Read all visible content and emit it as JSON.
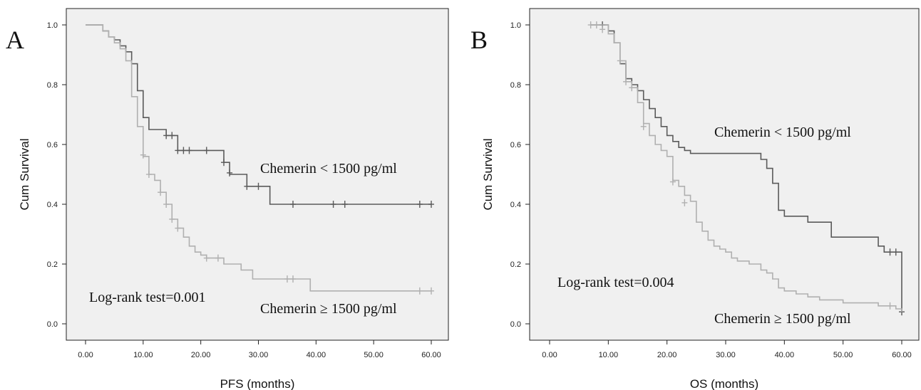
{
  "chart_data": [
    {
      "type": "line",
      "panel_label": "A",
      "xlabel": "PFS (months)",
      "ylabel": "Cum Survival",
      "xlim": [
        0,
        60
      ],
      "ylim": [
        0,
        1.0
      ],
      "x_ticks": [
        "0.00",
        "10.00",
        "20.00",
        "30.00",
        "40.00",
        "50.00",
        "60.00"
      ],
      "y_ticks": [
        "0.0",
        "0.2",
        "0.4",
        "0.6",
        "0.8",
        "1.0"
      ],
      "annotations": [
        "Chemerin < 1500 pg/ml",
        "Chemerin ≥ 1500 pg/ml",
        "Log-rank test=0.001"
      ],
      "series": [
        {
          "color": "#5a5a5a",
          "x": [
            0,
            1,
            3,
            4,
            5,
            6,
            7,
            8,
            9,
            10,
            11,
            14,
            15,
            16,
            24,
            25,
            28,
            30,
            32,
            60
          ],
          "y": [
            1.0,
            1.0,
            0.98,
            0.96,
            0.95,
            0.93,
            0.91,
            0.87,
            0.78,
            0.69,
            0.65,
            0.63,
            0.63,
            0.58,
            0.54,
            0.5,
            0.46,
            0.46,
            0.4,
            0.4
          ],
          "censored": [
            [
              14,
              0.63
            ],
            [
              15,
              0.63
            ],
            [
              16,
              0.58
            ],
            [
              17,
              0.58
            ],
            [
              18,
              0.58
            ],
            [
              21,
              0.58
            ],
            [
              24,
              0.54
            ],
            [
              25,
              0.505
            ],
            [
              28,
              0.46
            ],
            [
              30,
              0.46
            ],
            [
              36,
              0.4
            ],
            [
              43,
              0.4
            ],
            [
              45,
              0.4
            ],
            [
              58,
              0.4
            ],
            [
              60,
              0.4
            ]
          ]
        },
        {
          "color": "#b0b0b0",
          "x": [
            0,
            1,
            3,
            4,
            5,
            6,
            7,
            8,
            9,
            10,
            11,
            12,
            13,
            14,
            15,
            16,
            17,
            18,
            19,
            20,
            21,
            23,
            24,
            27,
            29,
            36,
            39,
            60
          ],
          "y": [
            1.0,
            1.0,
            0.98,
            0.96,
            0.94,
            0.92,
            0.88,
            0.76,
            0.66,
            0.56,
            0.5,
            0.48,
            0.44,
            0.4,
            0.35,
            0.32,
            0.29,
            0.26,
            0.24,
            0.23,
            0.22,
            0.22,
            0.2,
            0.18,
            0.15,
            0.15,
            0.11,
            0.11
          ],
          "censored": [
            [
              10,
              0.565
            ],
            [
              11,
              0.5
            ],
            [
              13,
              0.44
            ],
            [
              14,
              0.4
            ],
            [
              15,
              0.35
            ],
            [
              16,
              0.32
            ],
            [
              21,
              0.22
            ],
            [
              23,
              0.22
            ],
            [
              35,
              0.15
            ],
            [
              36,
              0.15
            ],
            [
              58,
              0.11
            ],
            [
              60,
              0.11
            ]
          ]
        }
      ]
    },
    {
      "type": "line",
      "panel_label": "B",
      "xlabel": "OS (months)",
      "ylabel": "Cum Survival",
      "xlim": [
        0,
        60
      ],
      "ylim": [
        0,
        1.0
      ],
      "x_ticks": [
        "0.00",
        "10.00",
        "20.00",
        "30.00",
        "40.00",
        "50.00",
        "60.00"
      ],
      "y_ticks": [
        "0.0",
        "0.2",
        "0.4",
        "0.6",
        "0.8",
        "1.0"
      ],
      "annotations": [
        "Chemerin < 1500 pg/ml",
        "Log-rank test=0.004",
        "Chemerin ≥ 1500 pg/ml"
      ],
      "series": [
        {
          "color": "#5a5a5a",
          "x": [
            7,
            10,
            11,
            12,
            13,
            14,
            15,
            16,
            17,
            18,
            19,
            20,
            21,
            22,
            23,
            24,
            36,
            37,
            38,
            39,
            40,
            44,
            48,
            56,
            57,
            60,
            60
          ],
          "y": [
            1.0,
            0.98,
            0.94,
            0.87,
            0.82,
            0.8,
            0.78,
            0.75,
            0.72,
            0.69,
            0.66,
            0.63,
            0.61,
            0.59,
            0.58,
            0.57,
            0.55,
            0.52,
            0.47,
            0.38,
            0.36,
            0.34,
            0.29,
            0.26,
            0.24,
            0.24,
            0.04
          ],
          "censored": [
            [
              9,
              1.0
            ],
            [
              58,
              0.24
            ],
            [
              59,
              0.24
            ],
            [
              60,
              0.04
            ]
          ]
        },
        {
          "color": "#b0b0b0",
          "x": [
            7,
            10,
            11,
            12,
            13,
            14,
            15,
            16,
            17,
            18,
            19,
            20,
            21,
            22,
            23,
            24,
            25,
            26,
            27,
            28,
            29,
            30,
            31,
            32,
            34,
            36,
            37,
            38,
            39,
            40,
            42,
            44,
            46,
            50,
            56,
            59,
            60
          ],
          "y": [
            1.0,
            0.97,
            0.94,
            0.88,
            0.81,
            0.79,
            0.74,
            0.67,
            0.63,
            0.6,
            0.58,
            0.56,
            0.48,
            0.46,
            0.43,
            0.41,
            0.34,
            0.31,
            0.28,
            0.26,
            0.25,
            0.24,
            0.22,
            0.21,
            0.2,
            0.18,
            0.17,
            0.15,
            0.12,
            0.11,
            0.1,
            0.09,
            0.08,
            0.07,
            0.06,
            0.05,
            0.04
          ],
          "censored": [
            [
              7,
              1.0
            ],
            [
              8,
              1.0
            ],
            [
              9,
              0.985
            ],
            [
              12,
              0.88
            ],
            [
              13,
              0.81
            ],
            [
              14,
              0.79
            ],
            [
              16,
              0.66
            ],
            [
              21,
              0.475
            ],
            [
              23,
              0.405
            ],
            [
              58,
              0.06
            ]
          ]
        }
      ]
    }
  ]
}
